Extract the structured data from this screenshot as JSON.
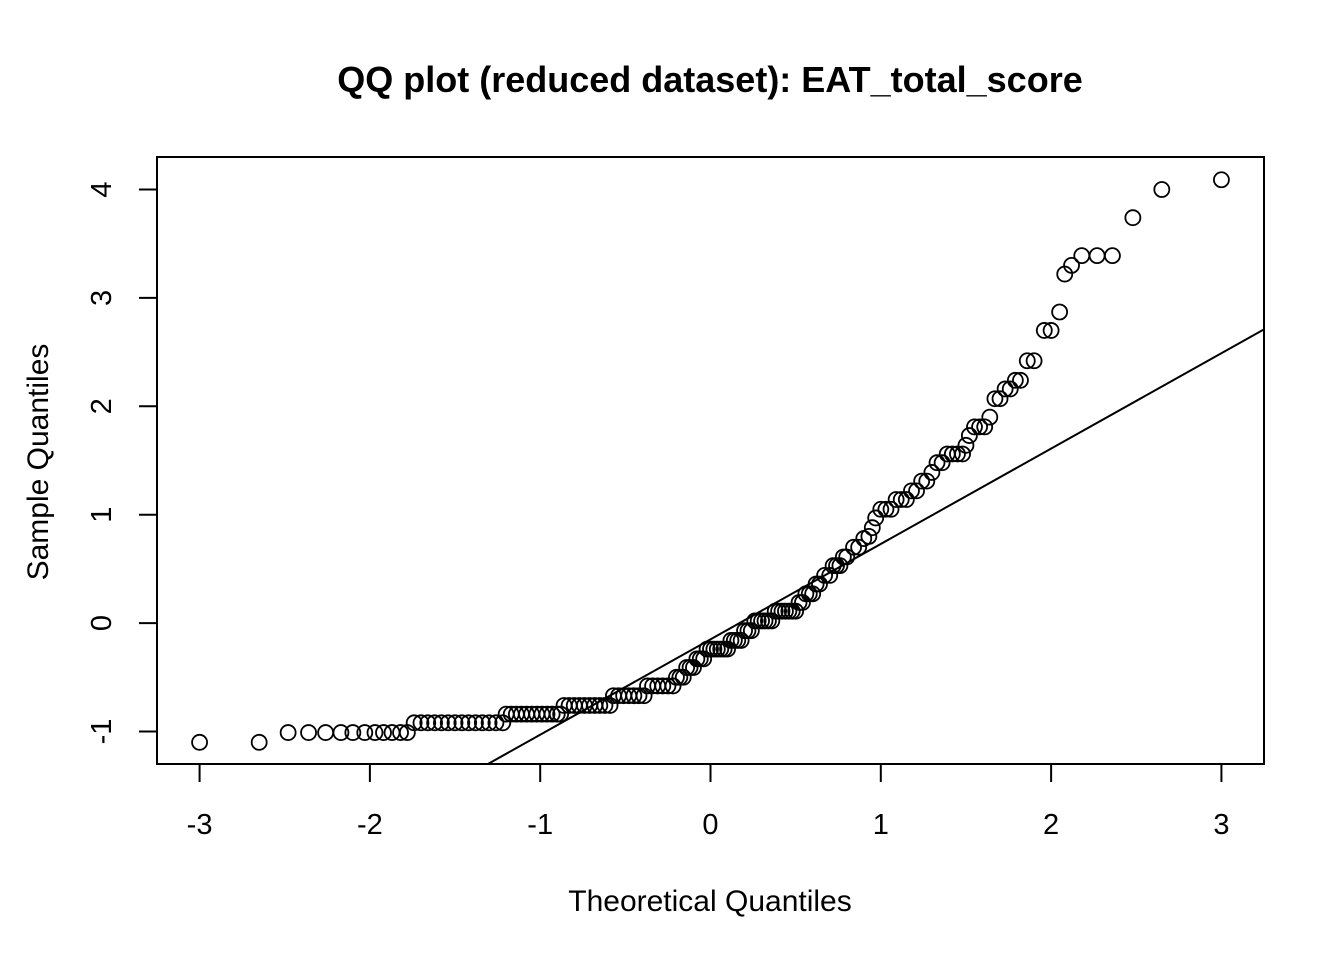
{
  "chart_data": {
    "type": "scatter",
    "title": "QQ plot (reduced dataset): EAT_total_score",
    "xlabel": "Theoretical Quantiles",
    "ylabel": "Sample Quantiles",
    "xlim": [
      -3.25,
      3.25
    ],
    "ylim": [
      -1.3,
      4.3
    ],
    "x_ticks": [
      -3,
      -2,
      -1,
      0,
      1,
      2,
      3
    ],
    "x_tick_labels": [
      "-3",
      "-2",
      "-1",
      "0",
      "1",
      "2",
      "3"
    ],
    "y_ticks": [
      -1,
      0,
      1,
      2,
      3,
      4
    ],
    "y_tick_labels": [
      "-1",
      "0",
      "1",
      "2",
      "3",
      "4"
    ],
    "grid": false,
    "legend": "none",
    "reference_line": {
      "intercept": -0.15,
      "slope": 0.88
    },
    "points": [
      [
        -3.0,
        -1.1
      ],
      [
        -2.65,
        -1.1
      ],
      [
        -2.48,
        -1.01
      ],
      [
        -2.36,
        -1.01
      ],
      [
        -2.26,
        -1.01
      ],
      [
        -2.17,
        -1.01
      ],
      [
        -2.1,
        -1.01
      ],
      [
        -2.03,
        -1.01
      ],
      [
        -1.97,
        -1.01
      ],
      [
        -1.92,
        -1.01
      ],
      [
        -1.87,
        -1.01
      ],
      [
        -1.82,
        -1.01
      ],
      [
        -1.78,
        -1.01
      ],
      [
        -1.74,
        -0.92
      ],
      [
        -1.7,
        -0.92
      ],
      [
        -1.66,
        -0.92
      ],
      [
        -1.62,
        -0.92
      ],
      [
        -1.58,
        -0.92
      ],
      [
        -1.54,
        -0.92
      ],
      [
        -1.5,
        -0.92
      ],
      [
        -1.46,
        -0.92
      ],
      [
        -1.42,
        -0.92
      ],
      [
        -1.38,
        -0.92
      ],
      [
        -1.34,
        -0.92
      ],
      [
        -1.3,
        -0.92
      ],
      [
        -1.26,
        -0.92
      ],
      [
        -1.22,
        -0.92
      ],
      [
        -1.2,
        -0.84
      ],
      [
        -1.17,
        -0.84
      ],
      [
        -1.14,
        -0.84
      ],
      [
        -1.11,
        -0.84
      ],
      [
        -1.08,
        -0.84
      ],
      [
        -1.05,
        -0.84
      ],
      [
        -1.02,
        -0.84
      ],
      [
        -0.99,
        -0.84
      ],
      [
        -0.96,
        -0.84
      ],
      [
        -0.93,
        -0.84
      ],
      [
        -0.9,
        -0.84
      ],
      [
        -0.88,
        -0.84
      ],
      [
        -0.86,
        -0.76
      ],
      [
        -0.83,
        -0.76
      ],
      [
        -0.8,
        -0.76
      ],
      [
        -0.77,
        -0.76
      ],
      [
        -0.74,
        -0.76
      ],
      [
        -0.71,
        -0.76
      ],
      [
        -0.68,
        -0.76
      ],
      [
        -0.65,
        -0.76
      ],
      [
        -0.62,
        -0.76
      ],
      [
        -0.59,
        -0.76
      ],
      [
        -0.57,
        -0.67
      ],
      [
        -0.54,
        -0.67
      ],
      [
        -0.51,
        -0.67
      ],
      [
        -0.48,
        -0.67
      ],
      [
        -0.45,
        -0.67
      ],
      [
        -0.42,
        -0.67
      ],
      [
        -0.39,
        -0.67
      ],
      [
        -0.37,
        -0.58
      ],
      [
        -0.34,
        -0.58
      ],
      [
        -0.31,
        -0.58
      ],
      [
        -0.28,
        -0.58
      ],
      [
        -0.25,
        -0.58
      ],
      [
        -0.22,
        -0.58
      ],
      [
        -0.2,
        -0.5
      ],
      [
        -0.18,
        -0.5
      ],
      [
        -0.16,
        -0.5
      ],
      [
        -0.14,
        -0.41
      ],
      [
        -0.12,
        -0.41
      ],
      [
        -0.1,
        -0.41
      ],
      [
        -0.08,
        -0.33
      ],
      [
        -0.06,
        -0.33
      ],
      [
        -0.04,
        -0.33
      ],
      [
        -0.02,
        -0.24
      ],
      [
        0.0,
        -0.24
      ],
      [
        0.02,
        -0.24
      ],
      [
        0.04,
        -0.24
      ],
      [
        0.06,
        -0.24
      ],
      [
        0.08,
        -0.24
      ],
      [
        0.1,
        -0.24
      ],
      [
        0.12,
        -0.16
      ],
      [
        0.14,
        -0.16
      ],
      [
        0.16,
        -0.16
      ],
      [
        0.18,
        -0.16
      ],
      [
        0.2,
        -0.07
      ],
      [
        0.22,
        -0.07
      ],
      [
        0.24,
        -0.07
      ],
      [
        0.26,
        0.02
      ],
      [
        0.28,
        0.02
      ],
      [
        0.3,
        0.02
      ],
      [
        0.32,
        0.02
      ],
      [
        0.34,
        0.02
      ],
      [
        0.36,
        0.02
      ],
      [
        0.38,
        0.11
      ],
      [
        0.4,
        0.11
      ],
      [
        0.42,
        0.11
      ],
      [
        0.44,
        0.11
      ],
      [
        0.46,
        0.11
      ],
      [
        0.48,
        0.11
      ],
      [
        0.5,
        0.11
      ],
      [
        0.52,
        0.19
      ],
      [
        0.54,
        0.19
      ],
      [
        0.56,
        0.27
      ],
      [
        0.58,
        0.27
      ],
      [
        0.6,
        0.27
      ],
      [
        0.62,
        0.36
      ],
      [
        0.64,
        0.36
      ],
      [
        0.67,
        0.44
      ],
      [
        0.7,
        0.44
      ],
      [
        0.72,
        0.53
      ],
      [
        0.74,
        0.53
      ],
      [
        0.76,
        0.53
      ],
      [
        0.78,
        0.61
      ],
      [
        0.8,
        0.61
      ],
      [
        0.84,
        0.7
      ],
      [
        0.87,
        0.7
      ],
      [
        0.9,
        0.78
      ],
      [
        0.93,
        0.8
      ],
      [
        0.95,
        0.88
      ],
      [
        0.97,
        0.97
      ],
      [
        1.0,
        1.05
      ],
      [
        1.03,
        1.05
      ],
      [
        1.06,
        1.05
      ],
      [
        1.09,
        1.14
      ],
      [
        1.12,
        1.14
      ],
      [
        1.15,
        1.14
      ],
      [
        1.18,
        1.22
      ],
      [
        1.21,
        1.22
      ],
      [
        1.24,
        1.31
      ],
      [
        1.27,
        1.31
      ],
      [
        1.3,
        1.39
      ],
      [
        1.33,
        1.48
      ],
      [
        1.36,
        1.48
      ],
      [
        1.39,
        1.56
      ],
      [
        1.42,
        1.56
      ],
      [
        1.45,
        1.56
      ],
      [
        1.48,
        1.56
      ],
      [
        1.5,
        1.64
      ],
      [
        1.52,
        1.73
      ],
      [
        1.55,
        1.81
      ],
      [
        1.58,
        1.81
      ],
      [
        1.61,
        1.81
      ],
      [
        1.64,
        1.9
      ],
      [
        1.67,
        2.07
      ],
      [
        1.7,
        2.07
      ],
      [
        1.73,
        2.16
      ],
      [
        1.76,
        2.16
      ],
      [
        1.79,
        2.24
      ],
      [
        1.82,
        2.24
      ],
      [
        1.86,
        2.42
      ],
      [
        1.9,
        2.42
      ],
      [
        1.96,
        2.7
      ],
      [
        2.0,
        2.7
      ],
      [
        2.05,
        2.87
      ],
      [
        2.08,
        3.22
      ],
      [
        2.12,
        3.3
      ],
      [
        2.18,
        3.39
      ],
      [
        2.27,
        3.39
      ],
      [
        2.36,
        3.39
      ],
      [
        2.48,
        3.74
      ],
      [
        2.65,
        4.0
      ],
      [
        3.0,
        4.09
      ]
    ]
  }
}
